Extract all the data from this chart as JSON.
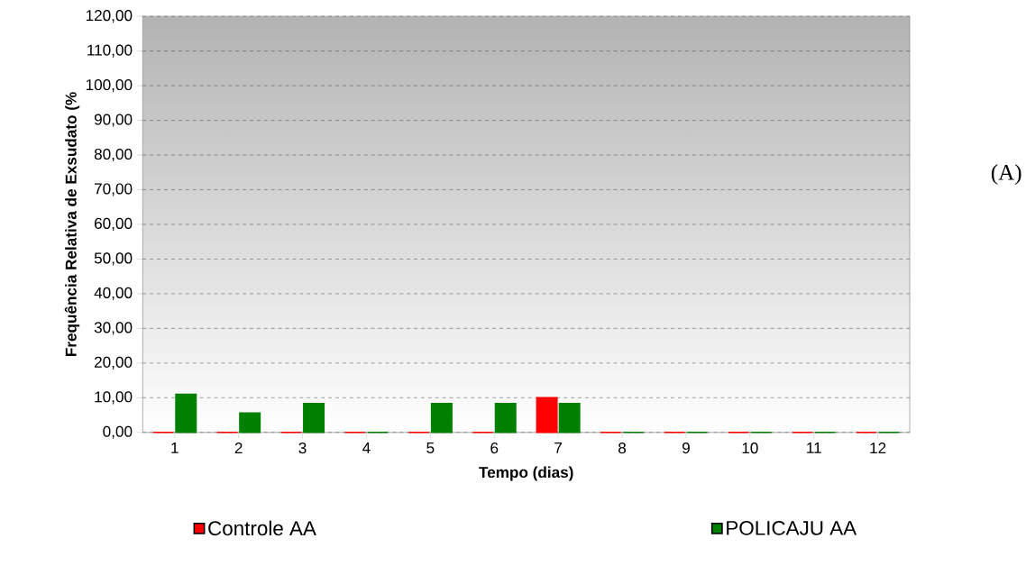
{
  "chart_data": {
    "type": "bar",
    "xlabel": "Tempo (dias)",
    "ylabel": "Frequência Relativa de Exsudato (%",
    "categories": [
      "1",
      "2",
      "3",
      "4",
      "5",
      "6",
      "7",
      "8",
      "9",
      "10",
      "11",
      "12"
    ],
    "series": [
      {
        "name": "Controle  AA",
        "color": "#ff0000",
        "values": [
          0,
          0,
          0,
          0,
          0,
          0,
          10,
          0,
          0,
          0,
          0,
          0
        ]
      },
      {
        "name": "POLICAJU AA",
        "color": "#008000",
        "values": [
          11,
          5.6,
          8.3,
          0,
          8.3,
          8.3,
          8.3,
          0,
          0,
          0,
          0,
          0
        ]
      }
    ],
    "ylim": [
      0,
      120
    ],
    "yticks": [
      {
        "value": 0,
        "label": "0,00"
      },
      {
        "value": 10,
        "label": "10,00"
      },
      {
        "value": 20,
        "label": "20,00"
      },
      {
        "value": 30,
        "label": "30,00"
      },
      {
        "value": 40,
        "label": "40,00"
      },
      {
        "value": 50,
        "label": "50,00"
      },
      {
        "value": 60,
        "label": "60,00"
      },
      {
        "value": 70,
        "label": "70,00"
      },
      {
        "value": 80,
        "label": "80,00"
      },
      {
        "value": 90,
        "label": "90,00"
      },
      {
        "value": 100,
        "label": "100,00"
      },
      {
        "value": 110,
        "label": "110,00"
      },
      {
        "value": 120,
        "label": "120,00"
      }
    ],
    "grid": "y",
    "legend": "bottom",
    "annotations": [
      "(A)"
    ]
  }
}
